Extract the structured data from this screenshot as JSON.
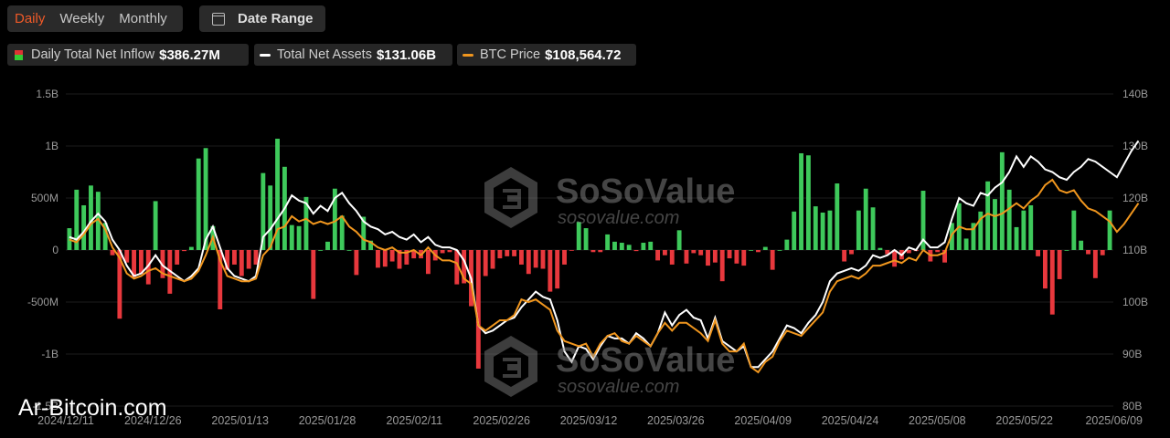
{
  "controls": {
    "periods": [
      "Daily",
      "Weekly",
      "Monthly"
    ],
    "active_period": "Daily",
    "date_range_label": "Date Range"
  },
  "legend": {
    "inflow_label": "Daily Total Net Inflow",
    "inflow_value": "$386.27M",
    "assets_label": "Total Net Assets",
    "assets_value": "$131.06B",
    "btc_label": "BTC Price",
    "btc_value": "$108,564.72"
  },
  "watermark": {
    "brand": "SoSoValue",
    "site": "sosovalue.com",
    "overlay": "Ar-Bitcoin.com"
  },
  "colors": {
    "inflow_pos": "#3ec95b",
    "inflow_neg": "#e8383d",
    "assets_line": "#ffffff",
    "btc_line": "#f0961e"
  },
  "chart_data": {
    "type": "bar",
    "left_axis": {
      "unit": "USD net inflow",
      "ticks": [
        "1.5B",
        "1B",
        "500M",
        "0",
        "-500M",
        "-1B",
        "-1.5B"
      ],
      "range": [
        -1500,
        1500
      ]
    },
    "right_axis": {
      "unit": "USD",
      "ticks": [
        "140B",
        "130B",
        "120B",
        "110B",
        "100B",
        "90B",
        "80B"
      ],
      "range": [
        80,
        140
      ]
    },
    "x_tick_labels": [
      "2024/12/11",
      "2024/12/26",
      "2025/01/13",
      "2025/01/28",
      "2025/02/11",
      "2025/02/26",
      "2025/03/12",
      "2025/03/26",
      "2025/04/09",
      "2025/04/24",
      "2025/05/08",
      "2025/05/22",
      "2025/06/09"
    ],
    "series": [
      {
        "kind": "bar",
        "axis": "left",
        "values": [
          210,
          580,
          430,
          620,
          560,
          260,
          -50,
          -660,
          -120,
          -260,
          -230,
          -330,
          470,
          -270,
          -420,
          -140,
          -10,
          30,
          880,
          980,
          230,
          -570,
          -190,
          -140,
          -250,
          -180,
          -140,
          740,
          620,
          1070,
          800,
          240,
          230,
          510,
          -470,
          0,
          80,
          590,
          330,
          0,
          -240,
          320,
          90,
          -170,
          -160,
          -110,
          -180,
          -140,
          -80,
          -80,
          -230,
          -100,
          -30,
          -20,
          -330,
          -320,
          -540,
          -1140,
          -250,
          -180,
          -80,
          -60,
          -60,
          -140,
          -230,
          -170,
          -180,
          -400,
          -370,
          -140,
          -1,
          270,
          210,
          -20,
          -20,
          150,
          80,
          70,
          50,
          -10,
          70,
          80,
          -100,
          -50,
          -140,
          190,
          -130,
          -30,
          -50,
          -150,
          -120,
          -300,
          -80,
          -130,
          -150,
          0,
          -20,
          30,
          -190,
          0,
          100,
          370,
          930,
          910,
          420,
          360,
          380,
          640,
          -110,
          -40,
          380,
          590,
          410,
          20,
          -40,
          -160,
          -90,
          -30,
          -10,
          570,
          -110,
          -20,
          -120,
          260,
          450,
          110,
          260,
          370,
          660,
          490,
          940,
          580,
          220,
          380,
          430,
          -60,
          -370,
          -620,
          -280,
          0,
          380,
          90,
          -40,
          -270,
          -50,
          380
        ]
      },
      {
        "kind": "line",
        "axis": "right",
        "values": [
          112.5,
          112.0,
          113.5,
          115.5,
          117.0,
          115.5,
          112.0,
          110.0,
          107.0,
          105.0,
          105.5,
          107.0,
          109.0,
          107.0,
          106.0,
          105.0,
          104.0,
          105.0,
          106.5,
          112.0,
          114.5,
          110.5,
          106.5,
          105.0,
          104.5,
          104.0,
          105.0,
          112.5,
          114.0,
          116.0,
          118.0,
          120.5,
          119.5,
          119.0,
          117.0,
          118.5,
          117.5,
          120.0,
          121.0,
          119.0,
          117.5,
          115.5,
          114.5,
          114.0,
          113.0,
          113.5,
          112.5,
          112.0,
          113.0,
          111.5,
          112.5,
          111.0,
          110.5,
          110.5,
          110.0,
          108.0,
          104.5,
          95.5,
          94.0,
          94.5,
          95.5,
          96.5,
          97.0,
          99.0,
          100.5,
          102.0,
          101.0,
          100.5,
          96.5,
          90.5,
          88.5,
          91.5,
          91.0,
          89.0,
          91.5,
          93.5,
          93.0,
          93.0,
          92.0,
          94.0,
          93.0,
          91.5,
          94.0,
          98.0,
          95.5,
          97.5,
          98.5,
          97.0,
          96.5,
          93.0,
          97.0,
          92.5,
          91.5,
          90.5,
          91.5,
          87.5,
          87.5,
          89.0,
          90.5,
          93.0,
          95.5,
          95.0,
          94.0,
          96.0,
          97.5,
          100.0,
          104.0,
          105.5,
          106.0,
          106.5,
          106.0,
          107.0,
          109.0,
          108.5,
          109.0,
          110.0,
          109.0,
          110.5,
          110.0,
          112.0,
          110.5,
          110.5,
          111.5,
          116.0,
          120.0,
          119.0,
          118.5,
          121.0,
          120.5,
          122.0,
          123.0,
          125.0,
          128.0,
          126.0,
          128.0,
          127.0,
          125.5,
          125.0,
          124.0,
          123.5,
          125.0,
          126.0,
          127.5,
          127.0,
          126.0,
          125.0,
          124.0,
          126.5,
          129.0,
          131.0
        ]
      },
      {
        "kind": "line",
        "axis": "right",
        "values": [
          112.0,
          111.5,
          113.0,
          115.0,
          116.0,
          114.0,
          110.5,
          108.5,
          105.5,
          104.5,
          105.0,
          106.0,
          106.5,
          105.5,
          105.0,
          104.5,
          104.0,
          104.5,
          106.0,
          109.0,
          112.5,
          108.0,
          105.0,
          104.5,
          104.0,
          104.0,
          104.5,
          109.0,
          110.5,
          114.0,
          114.5,
          116.5,
          115.5,
          116.0,
          115.0,
          115.5,
          115.0,
          115.5,
          116.5,
          114.5,
          113.5,
          112.0,
          111.5,
          110.5,
          110.0,
          110.5,
          109.5,
          109.5,
          110.0,
          109.0,
          110.5,
          109.0,
          108.0,
          108.0,
          107.5,
          104.5,
          103.5,
          95.5,
          94.5,
          95.5,
          96.5,
          96.5,
          97.5,
          100.5,
          100.0,
          100.5,
          99.5,
          98.5,
          94.5,
          92.5,
          92.0,
          91.5,
          92.0,
          89.5,
          92.0,
          93.5,
          94.0,
          92.5,
          92.0,
          93.5,
          92.5,
          91.5,
          94.0,
          96.0,
          94.5,
          96.0,
          96.0,
          95.0,
          94.0,
          92.5,
          96.5,
          92.0,
          90.5,
          90.5,
          92.0,
          87.5,
          86.5,
          88.5,
          89.5,
          92.5,
          94.5,
          94.0,
          93.5,
          95.0,
          96.5,
          98.0,
          102.0,
          104.0,
          104.5,
          105.0,
          104.5,
          105.5,
          107.0,
          107.0,
          107.5,
          108.0,
          107.5,
          108.5,
          108.0,
          110.0,
          109.0,
          109.0,
          109.5,
          113.0,
          114.5,
          114.0,
          114.0,
          116.0,
          117.0,
          116.5,
          117.0,
          118.0,
          119.0,
          118.0,
          119.5,
          120.5,
          122.5,
          123.5,
          121.5,
          121.0,
          121.5,
          119.5,
          118.0,
          117.5,
          116.5,
          115.5,
          113.5,
          115.0,
          117.0,
          119.0
        ]
      }
    ]
  }
}
